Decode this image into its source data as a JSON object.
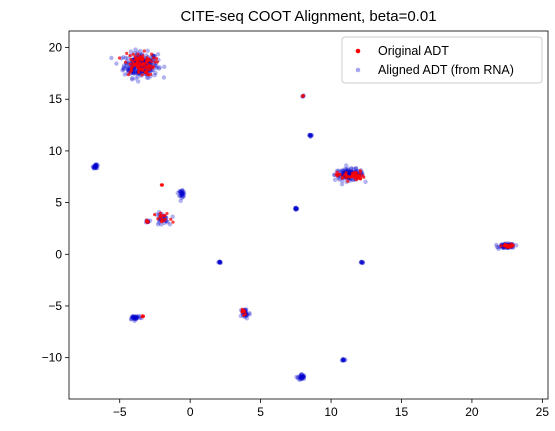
{
  "chart_data": {
    "type": "scatter",
    "title": "CITE-seq COOT Alignment, beta=0.01",
    "xlabel": "",
    "ylabel": "",
    "xlim": [
      -8.6,
      25.4
    ],
    "ylim": [
      -14,
      21.6
    ],
    "xticks": [
      -5,
      0,
      5,
      10,
      15,
      20,
      25
    ],
    "yticks": [
      -10,
      -5,
      0,
      5,
      10,
      15,
      20
    ],
    "grid": false,
    "legend_position": "top-right",
    "series": [
      {
        "name": "Original ADT",
        "color": "#ff0000",
        "marker": "point",
        "clusters": [
          {
            "cx": -3.6,
            "cy": 18.4,
            "sx": 0.9,
            "sy": 0.9,
            "n": 90
          },
          {
            "cx": 11.4,
            "cy": 7.6,
            "sx": 0.8,
            "sy": 0.4,
            "n": 45
          },
          {
            "cx": 22.6,
            "cy": 0.8,
            "sx": 0.4,
            "sy": 0.15,
            "n": 20
          },
          {
            "cx": -1.9,
            "cy": 3.4,
            "sx": 0.5,
            "sy": 0.5,
            "n": 16
          },
          {
            "cx": 8.0,
            "cy": 15.3,
            "sx": 0.05,
            "sy": 0.05,
            "n": 3
          },
          {
            "cx": -2.0,
            "cy": 6.7,
            "sx": 0.05,
            "sy": 0.05,
            "n": 3
          },
          {
            "cx": 3.8,
            "cy": -5.6,
            "sx": 0.2,
            "sy": 0.3,
            "n": 8
          },
          {
            "cx": -3.3,
            "cy": -6.0,
            "sx": 0.2,
            "sy": 0.1,
            "n": 5
          },
          {
            "cx": -3.0,
            "cy": 3.2,
            "sx": 0.15,
            "sy": 0.15,
            "n": 4
          }
        ]
      },
      {
        "name": "Aligned ADT (from RNA)",
        "color": "#0000cc",
        "marker": "point",
        "clusters": [
          {
            "cx": -3.5,
            "cy": 18.3,
            "sx": 1.0,
            "sy": 1.0,
            "n": 260
          },
          {
            "cx": 11.3,
            "cy": 7.7,
            "sx": 0.85,
            "sy": 0.45,
            "n": 140
          },
          {
            "cx": 22.5,
            "cy": 0.8,
            "sx": 0.45,
            "sy": 0.18,
            "n": 80
          },
          {
            "cx": -6.7,
            "cy": 8.5,
            "sx": 0.15,
            "sy": 0.15,
            "n": 25
          },
          {
            "cx": -0.6,
            "cy": 5.9,
            "sx": 0.2,
            "sy": 0.3,
            "n": 25
          },
          {
            "cx": -2.0,
            "cy": 3.4,
            "sx": 0.4,
            "sy": 0.5,
            "n": 30
          },
          {
            "cx": 8.5,
            "cy": 11.5,
            "sx": 0.1,
            "sy": 0.1,
            "n": 10
          },
          {
            "cx": 8.0,
            "cy": 15.3,
            "sx": 0.05,
            "sy": 0.05,
            "n": 4
          },
          {
            "cx": 7.5,
            "cy": 4.4,
            "sx": 0.1,
            "sy": 0.1,
            "n": 12
          },
          {
            "cx": 2.1,
            "cy": -0.8,
            "sx": 0.08,
            "sy": 0.08,
            "n": 10
          },
          {
            "cx": 12.2,
            "cy": -0.8,
            "sx": 0.06,
            "sy": 0.08,
            "n": 8
          },
          {
            "cx": 3.9,
            "cy": -5.7,
            "sx": 0.3,
            "sy": 0.45,
            "n": 35
          },
          {
            "cx": -3.9,
            "cy": -6.1,
            "sx": 0.35,
            "sy": 0.2,
            "n": 30
          },
          {
            "cx": 7.9,
            "cy": -11.9,
            "sx": 0.2,
            "sy": 0.25,
            "n": 30
          },
          {
            "cx": 10.9,
            "cy": -10.2,
            "sx": 0.08,
            "sy": 0.08,
            "n": 10
          },
          {
            "cx": -3.0,
            "cy": 3.2,
            "sx": 0.12,
            "sy": 0.12,
            "n": 8
          }
        ]
      }
    ]
  }
}
